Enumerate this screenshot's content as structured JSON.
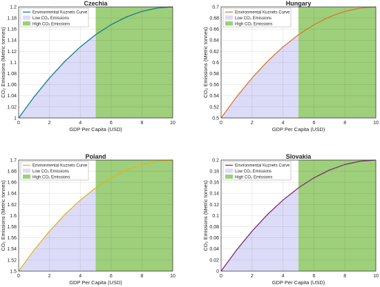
{
  "chart_data": [
    {
      "type": "line",
      "title": "Czechia",
      "xlabel": "GDP Per Capita (USD)",
      "ylabel": "CO₂ Emissions (Metric tonnes)",
      "xlim": [
        0,
        10
      ],
      "ylim": [
        1,
        1.2
      ],
      "xticks": [
        "0",
        "2",
        "4",
        "6",
        "8",
        "10"
      ],
      "yticks": [
        "1",
        "1.02",
        "1.04",
        "1.06",
        "1.08",
        "1.1",
        "1.12",
        "1.14",
        "1.16",
        "1.18",
        "1.2"
      ],
      "threshold_x": 5,
      "grid": true,
      "legend_position": "top-left",
      "series": [
        {
          "name": "Environmental Kuznets Curve",
          "color": "#0e7c86",
          "x": [
            0,
            1,
            2,
            3,
            4,
            5,
            6,
            7,
            8,
            9,
            10
          ],
          "y": [
            1.0,
            1.038,
            1.072,
            1.102,
            1.128,
            1.15,
            1.168,
            1.182,
            1.192,
            1.198,
            1.2
          ]
        }
      ],
      "regions": [
        {
          "name": "Low CO₂ Emissions",
          "color": "#dcdcf8",
          "x_range": [
            0,
            5
          ]
        },
        {
          "name": "High CO₂ Emissions",
          "color": "#9ecf7b",
          "x_range": [
            5,
            10
          ]
        }
      ]
    },
    {
      "type": "line",
      "title": "Hungary",
      "xlabel": "GDP Per Capita (USD)",
      "ylabel": "CO₂ Emissions (Metric tonnes)",
      "xlim": [
        0,
        10
      ],
      "ylim": [
        0.5,
        0.7
      ],
      "xticks": [
        "0",
        "2",
        "4",
        "6",
        "8",
        "10"
      ],
      "yticks": [
        "0.5",
        "0.52",
        "0.54",
        "0.56",
        "0.58",
        "0.6",
        "0.62",
        "0.64",
        "0.66",
        "0.68",
        "0.7"
      ],
      "threshold_x": 5,
      "grid": true,
      "legend_position": "top-left",
      "series": [
        {
          "name": "Environmental Kuznets Curve",
          "color": "#d9762b",
          "x": [
            0,
            1,
            2,
            3,
            4,
            5,
            6,
            7,
            8,
            9,
            10
          ],
          "y": [
            0.5,
            0.538,
            0.572,
            0.602,
            0.628,
            0.65,
            0.668,
            0.682,
            0.692,
            0.698,
            0.7
          ]
        }
      ],
      "regions": [
        {
          "name": "Low CO₂ Emissions",
          "color": "#dcdcf8",
          "x_range": [
            0,
            5
          ]
        },
        {
          "name": "High CO₂ Emissions",
          "color": "#9ecf7b",
          "x_range": [
            5,
            10
          ]
        }
      ]
    },
    {
      "type": "line",
      "title": "Poland",
      "xlabel": "GDP Per Capita (USD)",
      "ylabel": "CO₂ Emissions (Metric tonnes)",
      "xlim": [
        0,
        10
      ],
      "ylim": [
        1.5,
        1.7
      ],
      "xticks": [
        "0",
        "2",
        "4",
        "6",
        "8",
        "10"
      ],
      "yticks": [
        "1.5",
        "1.52",
        "1.54",
        "1.56",
        "1.58",
        "1.6",
        "1.62",
        "1.64",
        "1.66",
        "1.68",
        "1.7"
      ],
      "threshold_x": 5,
      "grid": true,
      "legend_position": "top-left",
      "series": [
        {
          "name": "Environmental Kuznets Curve",
          "color": "#e3b51c",
          "x": [
            0,
            1,
            2,
            3,
            4,
            5,
            6,
            7,
            8,
            9,
            10
          ],
          "y": [
            1.5,
            1.538,
            1.572,
            1.602,
            1.628,
            1.65,
            1.668,
            1.682,
            1.692,
            1.698,
            1.7
          ]
        }
      ],
      "regions": [
        {
          "name": "Low CO₂ Emissions",
          "color": "#dcdcf8",
          "x_range": [
            0,
            5
          ]
        },
        {
          "name": "High CO₂ Emissions",
          "color": "#9ecf7b",
          "x_range": [
            5,
            10
          ]
        }
      ]
    },
    {
      "type": "line",
      "title": "Slovakia",
      "xlabel": "GDP Per Capita (USD)",
      "ylabel": "CO₂ Emissions (Metric tonnes)",
      "xlim": [
        0,
        10
      ],
      "ylim": [
        0,
        0.2
      ],
      "xticks": [
        "0",
        "2",
        "4",
        "6",
        "8",
        "10"
      ],
      "yticks": [
        "0",
        "0.02",
        "0.04",
        "0.06",
        "0.08",
        "0.1",
        "0.12",
        "0.14",
        "0.16",
        "0.18",
        "0.2"
      ],
      "threshold_x": 5,
      "grid": true,
      "legend_position": "top-left",
      "series": [
        {
          "name": "Environmental Kuznets Curve",
          "color": "#7b2a6e",
          "x": [
            0,
            1,
            2,
            3,
            4,
            5,
            6,
            7,
            8,
            9,
            10
          ],
          "y": [
            0.0,
            0.038,
            0.072,
            0.102,
            0.128,
            0.15,
            0.168,
            0.182,
            0.192,
            0.198,
            0.2
          ]
        }
      ],
      "regions": [
        {
          "name": "Low CO₂ Emissions",
          "color": "#dcdcf8",
          "x_range": [
            0,
            5
          ]
        },
        {
          "name": "High CO₂ Emissions",
          "color": "#9ecf7b",
          "x_range": [
            5,
            10
          ]
        }
      ]
    }
  ]
}
